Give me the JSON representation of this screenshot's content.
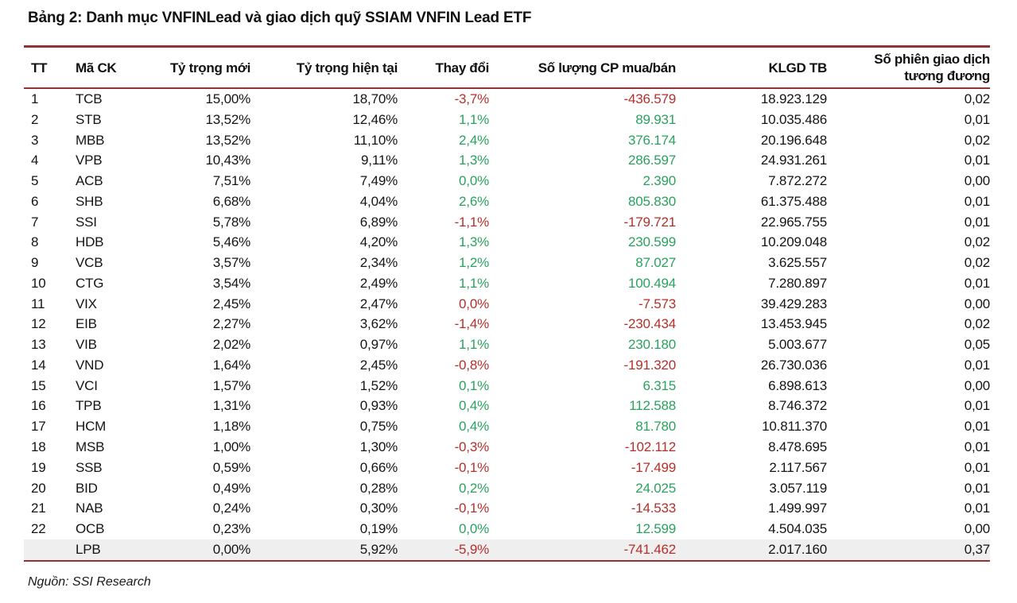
{
  "title": "Bảng 2: Danh mục VNFINLead và giao dịch quỹ SSIAM VNFIN Lead ETF",
  "source": "Nguồn: SSI Research",
  "colors": {
    "negative": "#b5302a",
    "positive": "#2aa25e",
    "rule": "#8e3432",
    "highlight_bg": "#efefef"
  },
  "table": {
    "columns": [
      "TT",
      "Mã CK",
      "Tỷ trọng mới",
      "Tỷ trọng hiện tại",
      "Thay đổi",
      "Số lượng CP mua/bán",
      "KLGD TB",
      "Số phiên giao dịch\ntương đương"
    ],
    "rows": [
      {
        "tt": "1",
        "ticker": "TCB",
        "new_weight": "15,00%",
        "current_weight": "18,70%",
        "change": "-3,7%",
        "shares": "-436.579",
        "avg_volume": "18.923.129",
        "sessions": "0,02"
      },
      {
        "tt": "2",
        "ticker": "STB",
        "new_weight": "13,52%",
        "current_weight": "12,46%",
        "change": "1,1%",
        "shares": "89.931",
        "avg_volume": "10.035.486",
        "sessions": "0,01"
      },
      {
        "tt": "3",
        "ticker": "MBB",
        "new_weight": "13,52%",
        "current_weight": "11,10%",
        "change": "2,4%",
        "shares": "376.174",
        "avg_volume": "20.196.648",
        "sessions": "0,02"
      },
      {
        "tt": "4",
        "ticker": "VPB",
        "new_weight": "10,43%",
        "current_weight": "9,11%",
        "change": "1,3%",
        "shares": "286.597",
        "avg_volume": "24.931.261",
        "sessions": "0,01"
      },
      {
        "tt": "5",
        "ticker": "ACB",
        "new_weight": "7,51%",
        "current_weight": "7,49%",
        "change": "0,0%",
        "shares": "2.390",
        "avg_volume": "7.872.272",
        "sessions": "0,00"
      },
      {
        "tt": "6",
        "ticker": "SHB",
        "new_weight": "6,68%",
        "current_weight": "4,04%",
        "change": "2,6%",
        "shares": "805.830",
        "avg_volume": "61.375.488",
        "sessions": "0,01"
      },
      {
        "tt": "7",
        "ticker": "SSI",
        "new_weight": "5,78%",
        "current_weight": "6,89%",
        "change": "-1,1%",
        "shares": "-179.721",
        "avg_volume": "22.965.755",
        "sessions": "0,01"
      },
      {
        "tt": "8",
        "ticker": "HDB",
        "new_weight": "5,46%",
        "current_weight": "4,20%",
        "change": "1,3%",
        "shares": "230.599",
        "avg_volume": "10.209.048",
        "sessions": "0,02"
      },
      {
        "tt": "9",
        "ticker": "VCB",
        "new_weight": "3,57%",
        "current_weight": "2,34%",
        "change": "1,2%",
        "shares": "87.027",
        "avg_volume": "3.625.557",
        "sessions": "0,02"
      },
      {
        "tt": "10",
        "ticker": "CTG",
        "new_weight": "3,54%",
        "current_weight": "2,49%",
        "change": "1,1%",
        "shares": "100.494",
        "avg_volume": "7.280.897",
        "sessions": "0,01"
      },
      {
        "tt": "11",
        "ticker": "VIX",
        "new_weight": "2,45%",
        "current_weight": "2,47%",
        "change": "0,0%",
        "shares": "-7.573",
        "avg_volume": "39.429.283",
        "sessions": "0,00"
      },
      {
        "tt": "12",
        "ticker": "EIB",
        "new_weight": "2,27%",
        "current_weight": "3,62%",
        "change": "-1,4%",
        "shares": "-230.434",
        "avg_volume": "13.453.945",
        "sessions": "0,02"
      },
      {
        "tt": "13",
        "ticker": "VIB",
        "new_weight": "2,02%",
        "current_weight": "0,97%",
        "change": "1,1%",
        "shares": "230.180",
        "avg_volume": "5.003.677",
        "sessions": "0,05"
      },
      {
        "tt": "14",
        "ticker": "VND",
        "new_weight": "1,64%",
        "current_weight": "2,45%",
        "change": "-0,8%",
        "shares": "-191.320",
        "avg_volume": "26.730.036",
        "sessions": "0,01"
      },
      {
        "tt": "15",
        "ticker": "VCI",
        "new_weight": "1,57%",
        "current_weight": "1,52%",
        "change": "0,1%",
        "shares": "6.315",
        "avg_volume": "6.898.613",
        "sessions": "0,00"
      },
      {
        "tt": "16",
        "ticker": "TPB",
        "new_weight": "1,31%",
        "current_weight": "0,93%",
        "change": "0,4%",
        "shares": "112.588",
        "avg_volume": "8.746.372",
        "sessions": "0,01"
      },
      {
        "tt": "17",
        "ticker": "HCM",
        "new_weight": "1,18%",
        "current_weight": "0,75%",
        "change": "0,4%",
        "shares": "81.780",
        "avg_volume": "10.811.370",
        "sessions": "0,01"
      },
      {
        "tt": "18",
        "ticker": "MSB",
        "new_weight": "1,00%",
        "current_weight": "1,30%",
        "change": "-0,3%",
        "shares": "-102.112",
        "avg_volume": "8.478.695",
        "sessions": "0,01"
      },
      {
        "tt": "19",
        "ticker": "SSB",
        "new_weight": "0,59%",
        "current_weight": "0,66%",
        "change": "-0,1%",
        "shares": "-17.499",
        "avg_volume": "2.117.567",
        "sessions": "0,01"
      },
      {
        "tt": "20",
        "ticker": "BID",
        "new_weight": "0,49%",
        "current_weight": "0,28%",
        "change": "0,2%",
        "shares": "24.025",
        "avg_volume": "3.057.119",
        "sessions": "0,01"
      },
      {
        "tt": "21",
        "ticker": "NAB",
        "new_weight": "0,24%",
        "current_weight": "0,30%",
        "change": "-0,1%",
        "shares": "-14.533",
        "avg_volume": "1.499.997",
        "sessions": "0,01"
      },
      {
        "tt": "22",
        "ticker": "OCB",
        "new_weight": "0,23%",
        "current_weight": "0,19%",
        "change": "0,0%",
        "shares": "12.599",
        "avg_volume": "4.504.035",
        "sessions": "0,00"
      },
      {
        "tt": "",
        "ticker": "LPB",
        "new_weight": "0,00%",
        "current_weight": "5,92%",
        "change": "-5,9%",
        "shares": "-741.462",
        "avg_volume": "2.017.160",
        "sessions": "0,37",
        "highlight": true
      }
    ]
  }
}
